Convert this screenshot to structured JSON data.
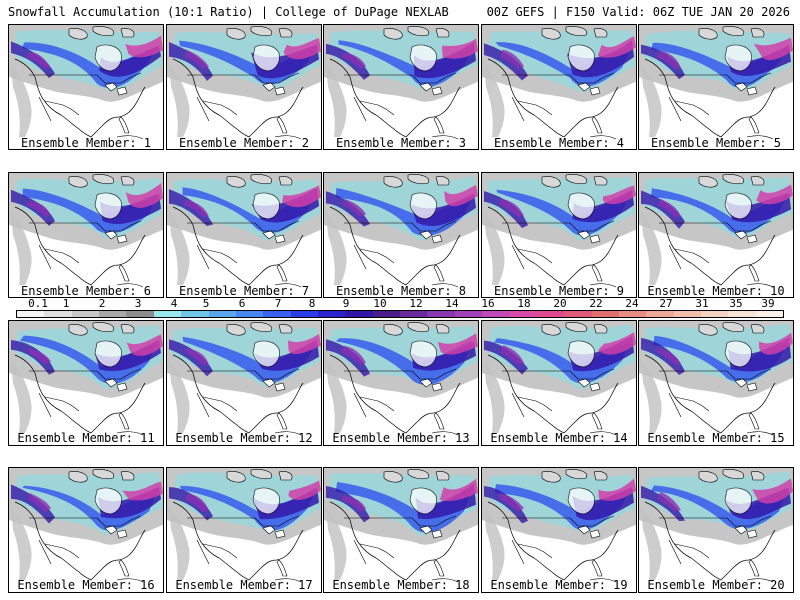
{
  "header": {
    "left": "Snowfall Accumulation (10:1 Ratio) | College of DuPage NEXLAB",
    "right": "00Z GEFS | F150 Valid: 06Z TUE JAN 20 2026"
  },
  "panels": [
    {
      "label": "Ensemble Member: 1"
    },
    {
      "label": "Ensemble Member: 2"
    },
    {
      "label": "Ensemble Member: 3"
    },
    {
      "label": "Ensemble Member: 4"
    },
    {
      "label": "Ensemble Member: 5"
    },
    {
      "label": "Ensemble Member: 6"
    },
    {
      "label": "Ensemble Member: 7"
    },
    {
      "label": "Ensemble Member: 8"
    },
    {
      "label": "Ensemble Member: 9"
    },
    {
      "label": "Ensemble Member: 10"
    },
    {
      "label": "Ensemble Member: 11"
    },
    {
      "label": "Ensemble Member: 12"
    },
    {
      "label": "Ensemble Member: 13"
    },
    {
      "label": "Ensemble Member: 14"
    },
    {
      "label": "Ensemble Member: 15"
    },
    {
      "label": "Ensemble Member: 16"
    },
    {
      "label": "Ensemble Member: 17"
    },
    {
      "label": "Ensemble Member: 18"
    },
    {
      "label": "Ensemble Member: 19"
    },
    {
      "label": "Ensemble Member: 20"
    }
  ],
  "colorbar": {
    "labels": [
      "0.1",
      "1",
      "2",
      "3",
      "4",
      "5",
      "6",
      "7",
      "8",
      "9",
      "10",
      "12",
      "14",
      "16",
      "18",
      "20",
      "22",
      "24",
      "27",
      "31",
      "35",
      "39"
    ],
    "colors": [
      "#f4f4f4",
      "#e0e0e0",
      "#c8c8c8",
      "#a8a8a8",
      "#8c8c8c",
      "#9ae8ec",
      "#6fc7e8",
      "#5aa6ee",
      "#4a86f0",
      "#3a62ee",
      "#2a3ee8",
      "#2a24cc",
      "#3018a4",
      "#4a1c8c",
      "#6a2a9c",
      "#8a38b0",
      "#a440b8",
      "#c04ab8",
      "#d84aa8",
      "#e04a90",
      "#e05a7a",
      "#e07070",
      "#e88c84",
      "#eca898",
      "#f0c0ac",
      "#f4d4c0",
      "#f8e4d4",
      "#fcf0e8"
    ]
  },
  "map_colors": {
    "land": "#ffffff",
    "ocean": "#ffffff",
    "border": "#000000",
    "snow_light": "#c0c0c0",
    "snow_medium": "#8a8a8a",
    "snow_cyan": "#7fe0ea",
    "snow_blue": "#3a5ef0",
    "snow_deep": "#3418a8",
    "snow_purple": "#8a30b0",
    "snow_magenta": "#d040a8"
  }
}
